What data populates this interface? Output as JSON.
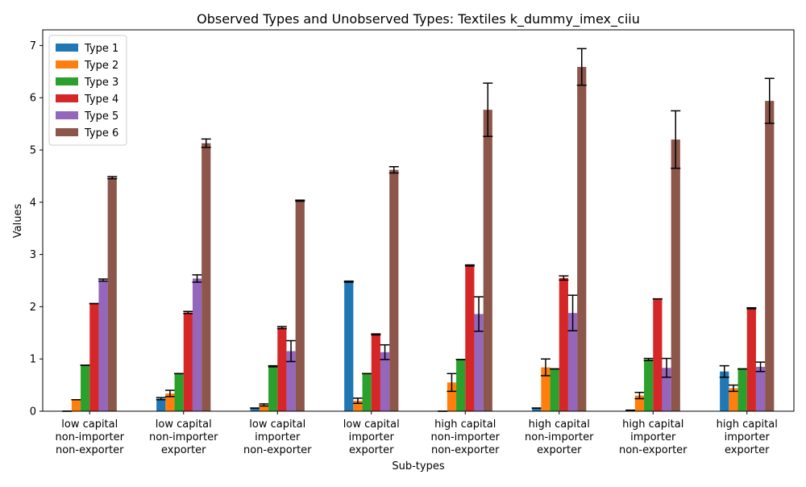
{
  "chart_data": {
    "type": "bar",
    "title": "Observed Types and Unobserved Types: Textiles k_dummy_imex_ciiu",
    "xlabel": "Sub-types",
    "ylabel": "Values",
    "ylim": [
      0,
      7.3
    ],
    "yticks": [
      0,
      1,
      2,
      3,
      4,
      5,
      6,
      7
    ],
    "legend_placement": "top-left",
    "grid": false,
    "categories": [
      [
        "low capital",
        "non-importer",
        "non-exporter"
      ],
      [
        "low capital",
        "non-importer",
        "exporter"
      ],
      [
        "low capital",
        "importer",
        "non-exporter"
      ],
      [
        "low capital",
        "importer",
        "exporter"
      ],
      [
        "high capital",
        "non-importer",
        "non-exporter"
      ],
      [
        "high capital",
        "non-importer",
        "exporter"
      ],
      [
        "high capital",
        "importer",
        "non-exporter"
      ],
      [
        "high capital",
        "importer",
        "exporter"
      ]
    ],
    "series": [
      {
        "name": "Type 1",
        "color": "#1f77b4",
        "values": [
          0.0,
          0.24,
          0.06,
          2.48,
          0.0,
          0.06,
          0.02,
          0.76
        ],
        "errors": [
          0.0,
          0.02,
          0.0,
          0.01,
          0.0,
          0.0,
          0.0,
          0.11
        ]
      },
      {
        "name": "Type 2",
        "color": "#ff7f0e",
        "values": [
          0.22,
          0.34,
          0.12,
          0.2,
          0.55,
          0.84,
          0.3,
          0.44
        ],
        "errors": [
          0.0,
          0.06,
          0.02,
          0.05,
          0.17,
          0.16,
          0.06,
          0.06
        ]
      },
      {
        "name": "Type 3",
        "color": "#2ca02c",
        "values": [
          0.88,
          0.72,
          0.86,
          0.72,
          0.99,
          0.81,
          0.99,
          0.81
        ],
        "errors": [
          0.0,
          0.0,
          0.01,
          0.0,
          0.0,
          0.0,
          0.02,
          0.0
        ]
      },
      {
        "name": "Type 4",
        "color": "#d62728",
        "values": [
          2.06,
          1.89,
          1.6,
          1.47,
          2.79,
          2.55,
          2.15,
          1.97
        ],
        "errors": [
          0.0,
          0.02,
          0.02,
          0.01,
          0.01,
          0.04,
          0.0,
          0.01
        ]
      },
      {
        "name": "Type 5",
        "color": "#9467bd",
        "values": [
          2.51,
          2.54,
          1.15,
          1.13,
          1.86,
          1.88,
          0.83,
          0.85
        ],
        "errors": [
          0.02,
          0.07,
          0.2,
          0.14,
          0.33,
          0.34,
          0.18,
          0.09
        ]
      },
      {
        "name": "Type 6",
        "color": "#8c564b",
        "values": [
          4.47,
          5.13,
          4.03,
          4.62,
          5.77,
          6.59,
          5.2,
          5.94
        ],
        "errors": [
          0.02,
          0.08,
          0.01,
          0.06,
          0.51,
          0.35,
          0.55,
          0.43
        ]
      }
    ]
  }
}
